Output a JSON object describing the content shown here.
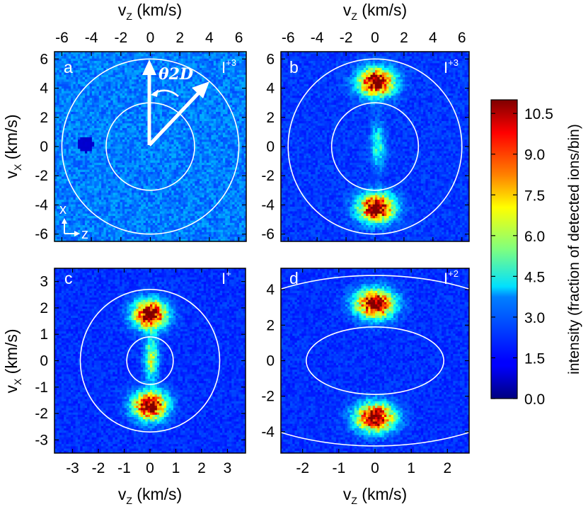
{
  "chart_data": {
    "type": "heatmap",
    "colorbar": {
      "label": "intensity (fraction of detected ions/bin)",
      "min": 0.0,
      "max": 11.0,
      "ticks": [
        "0.0",
        "1.5",
        "3.0",
        "4.5",
        "6.0",
        "7.5",
        "9.0",
        "10.5"
      ],
      "colormap": "jet"
    },
    "panels": [
      {
        "letter": "a",
        "ion": "I",
        "charge": "+3",
        "xlim": [
          -6.5,
          6.5
        ],
        "ylim": [
          -6.5,
          6.5
        ],
        "xticks": [
          "-6",
          "-4",
          "-2",
          "0",
          "2",
          "4",
          "6"
        ],
        "yticks": [
          "-6",
          "-4",
          "-2",
          "0",
          "2",
          "4",
          "6"
        ],
        "xlabel_top": "v_z (km/s)",
        "ylabel": "v_x (km/s)",
        "rings": [
          3.0,
          6.0
        ],
        "lobes": [],
        "background_level": 2.2,
        "dark_spot": [
          -4.4,
          0.15
        ],
        "theta_label": "θ2D",
        "axes_inset": {
          "vertical": "x",
          "horizontal": "z"
        }
      },
      {
        "letter": "b",
        "ion": "I",
        "charge": "+3",
        "xlim": [
          -6.5,
          6.5
        ],
        "ylim": [
          -6.5,
          6.5
        ],
        "xticks": [
          "-6",
          "-4",
          "-2",
          "0",
          "2",
          "4",
          "6"
        ],
        "yticks": [
          "-6",
          "-4",
          "-2",
          "0",
          "2",
          "4",
          "6"
        ],
        "xlabel_top": "v_z (km/s)",
        "rings": [
          3.0,
          6.0
        ],
        "lobes": [
          {
            "center": [
              0.1,
              4.4
            ],
            "spread": [
              1.15,
              0.9
            ],
            "peak": 10.5
          },
          {
            "center": [
              0.1,
              -4.2
            ],
            "spread": [
              1.15,
              0.9
            ],
            "peak": 10.5
          }
        ],
        "background_level": 1.4,
        "center_spot": {
          "center": [
            0.2,
            0.1
          ],
          "peak": 3.0
        }
      },
      {
        "letter": "c",
        "ion": "I",
        "charge": "+",
        "xlim": [
          -3.7,
          3.7
        ],
        "ylim": [
          -3.5,
          3.5
        ],
        "xticks": [
          "-3",
          "-2",
          "-1",
          "0",
          "1",
          "2",
          "3"
        ],
        "yticks": [
          "-3",
          "-2",
          "-1",
          "0",
          "1",
          "2",
          "3"
        ],
        "xlabel_bottom": "v_z (km/s)",
        "ylabel": "v_x (km/s)",
        "rings": [
          0.9,
          2.7
        ],
        "lobes": [
          {
            "center": [
              0.0,
              1.75
            ],
            "spread": [
              0.6,
              0.5
            ],
            "peak": 10.8
          },
          {
            "center": [
              0.0,
              -1.7
            ],
            "spread": [
              0.6,
              0.5
            ],
            "peak": 10.8
          }
        ],
        "background_level": 1.3,
        "center_spot": {
          "center": [
            0.05,
            0.1
          ],
          "peak": 4.5
        }
      },
      {
        "letter": "d",
        "ion": "I",
        "charge": "+2",
        "xlim": [
          -2.6,
          2.6
        ],
        "ylim": [
          -5.2,
          5.2
        ],
        "xticks": [
          "-2",
          "-1",
          "0",
          "1",
          "2"
        ],
        "yticks": [
          "-4",
          "-2",
          "0",
          "2",
          "4"
        ],
        "xlabel_bottom": "v_z (km/s)",
        "rings": [
          1.9,
          4.8
        ],
        "lobes": [
          {
            "center": [
              0.0,
              3.2
            ],
            "spread": [
              0.5,
              0.75
            ],
            "peak": 10.5
          },
          {
            "center": [
              0.0,
              -3.2
            ],
            "spread": [
              0.5,
              0.75
            ],
            "peak": 10.5
          }
        ],
        "background_level": 1.3
      }
    ]
  }
}
